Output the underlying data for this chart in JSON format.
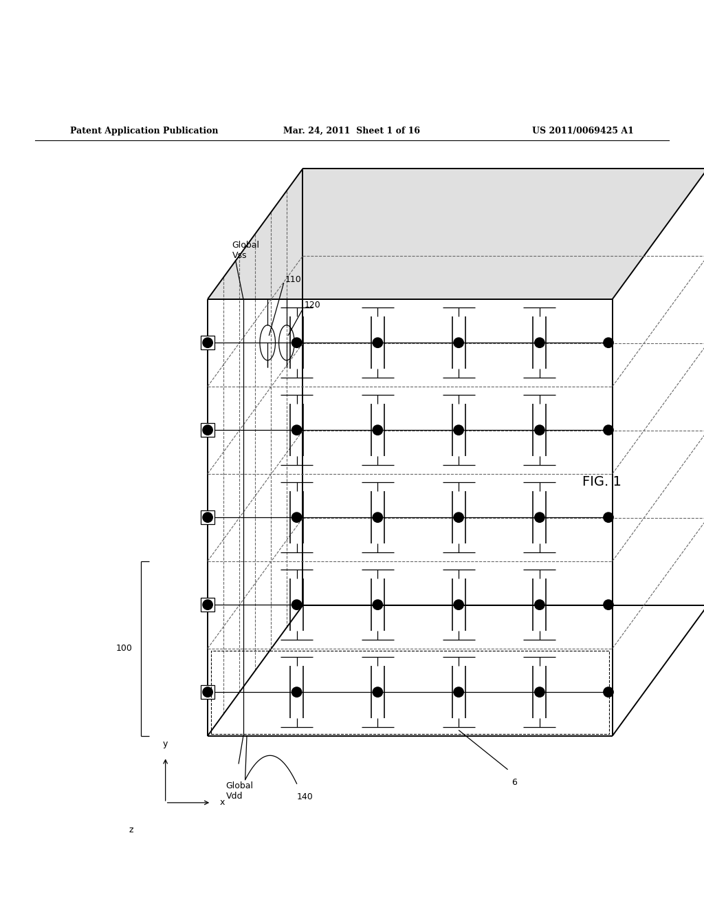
{
  "header_left": "Patent Application Publication",
  "header_mid": "Mar. 24, 2011  Sheet 1 of 16",
  "header_right": "US 2011/0069425 A1",
  "fig_label": "FIG. 1",
  "background_color": "#ffffff",
  "line_color": "#000000",
  "num_layers": 5,
  "fx": 0.295,
  "fy": 0.1,
  "fw": 0.575,
  "fh": 0.62,
  "ddx": 0.135,
  "ddy": 0.185
}
